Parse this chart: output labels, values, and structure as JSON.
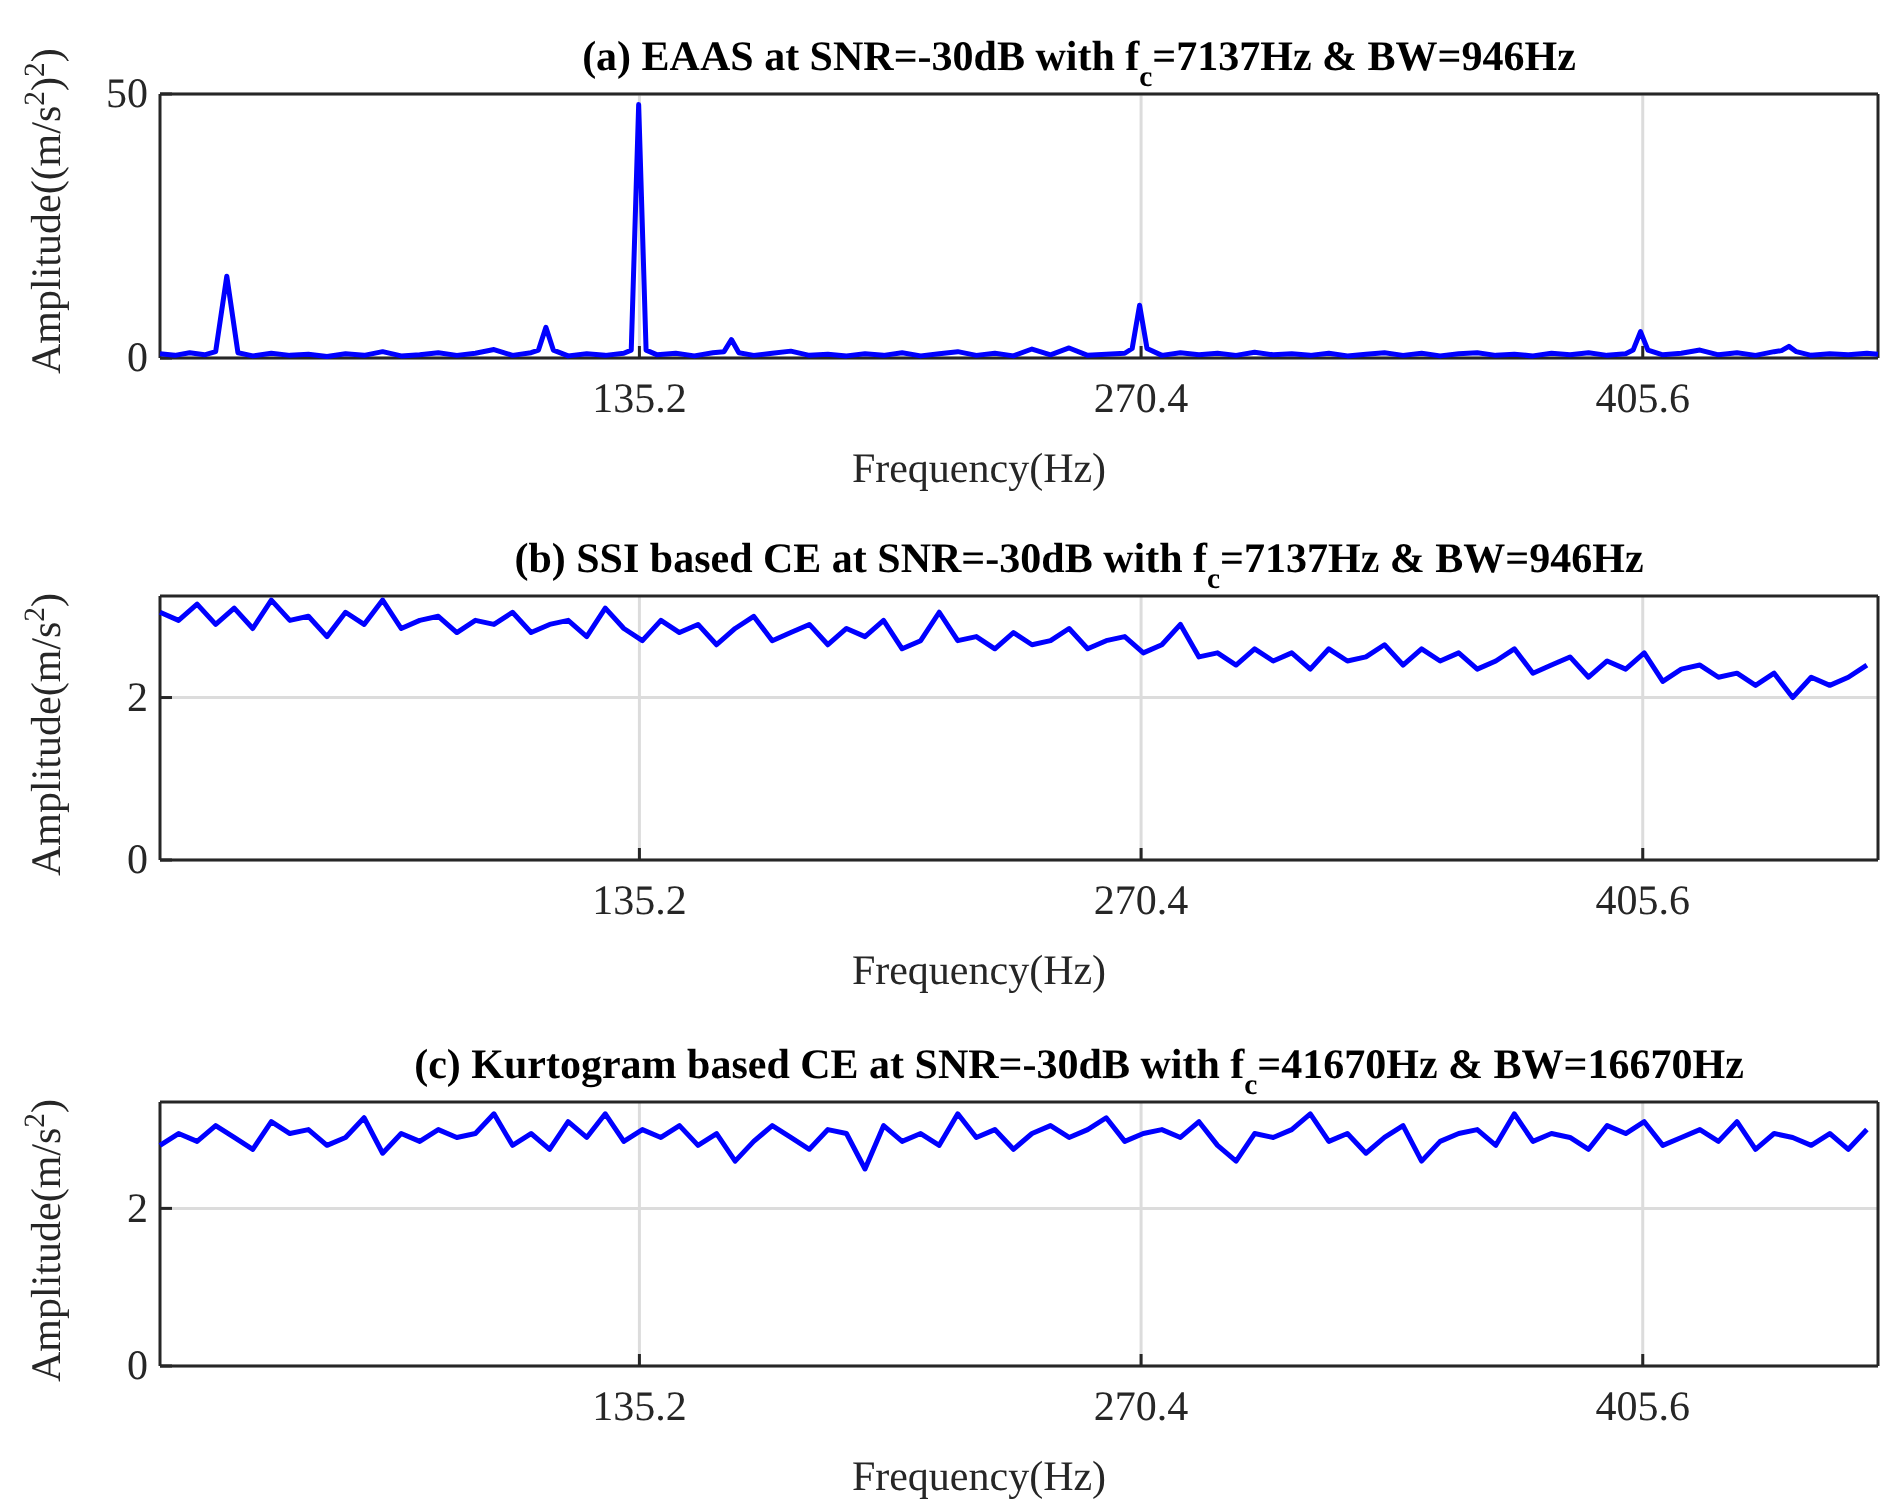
{
  "chart_data": [
    {
      "type": "line",
      "title": "(a) EAAS at SNR=-30dB with f$_{c}$=7137Hz & BW=946Hz",
      "xlabel": "Frequency(Hz)",
      "ylabel": "Amplitude((m/s$^{2}$)$^{2}$)",
      "xlim": [
        6,
        469
      ],
      "ylim": [
        0,
        50
      ],
      "xticks": [
        135.2,
        270.4,
        405.6
      ],
      "yticks": [
        0,
        50
      ],
      "grid": true,
      "line_style": "solid",
      "marker": "none",
      "series": [
        {
          "color": "#0000ff",
          "x": [
            6,
            10,
            14,
            18,
            21,
            24,
            27,
            31,
            36,
            41,
            46,
            51,
            56,
            61,
            66,
            71,
            76,
            81,
            86,
            91,
            96,
            101,
            106,
            108,
            110,
            112,
            116,
            121,
            126,
            131,
            133,
            135,
            137,
            140,
            145,
            150,
            155,
            158,
            160,
            162,
            166,
            171,
            176,
            181,
            186,
            191,
            196,
            201,
            206,
            211,
            216,
            221,
            226,
            231,
            236,
            241,
            246,
            251,
            256,
            261,
            266,
            268,
            270,
            272,
            276,
            281,
            286,
            291,
            296,
            301,
            306,
            311,
            316,
            321,
            326,
            331,
            336,
            341,
            346,
            351,
            356,
            361,
            366,
            371,
            376,
            381,
            386,
            391,
            396,
            401,
            403,
            405,
            407,
            411,
            416,
            421,
            426,
            431,
            436,
            441,
            443,
            445,
            447,
            451,
            456,
            461,
            466,
            469
          ],
          "values": [
            0.8,
            0.5,
            1.0,
            0.6,
            1.2,
            15.5,
            1.0,
            0.4,
            0.9,
            0.5,
            0.7,
            0.3,
            0.8,
            0.5,
            1.2,
            0.4,
            0.6,
            1.0,
            0.5,
            0.9,
            1.6,
            0.5,
            1.0,
            1.5,
            5.8,
            1.5,
            0.4,
            0.8,
            0.5,
            0.9,
            1.5,
            48,
            1.5,
            0.6,
            0.9,
            0.4,
            1.0,
            1.2,
            3.5,
            1.0,
            0.5,
            0.9,
            1.3,
            0.5,
            0.7,
            0.4,
            0.8,
            0.5,
            1.0,
            0.4,
            0.8,
            1.2,
            0.5,
            0.9,
            0.4,
            1.7,
            0.6,
            1.9,
            0.5,
            0.7,
            0.9,
            1.8,
            10,
            1.8,
            0.5,
            1.0,
            0.6,
            0.9,
            0.5,
            1.1,
            0.6,
            0.8,
            0.5,
            0.9,
            0.4,
            0.7,
            1.0,
            0.5,
            0.9,
            0.4,
            0.8,
            1.0,
            0.5,
            0.7,
            0.4,
            0.9,
            0.6,
            1.0,
            0.5,
            0.8,
            1.5,
            5.0,
            1.5,
            0.6,
            0.9,
            1.5,
            0.6,
            1.0,
            0.5,
            1.2,
            1.4,
            2.2,
            1.2,
            0.5,
            0.8,
            0.6,
            0.9,
            0.7
          ]
        }
      ]
    },
    {
      "type": "line",
      "title": "(b) SSI based CE at SNR=-30dB with f$_{c}$=7137Hz & BW=946Hz",
      "xlabel": "Frequency(Hz)",
      "ylabel": "Amplitude(m/s$^{2}$)",
      "xlim": [
        6,
        469
      ],
      "ylim": [
        0,
        3.25
      ],
      "xticks": [
        135.2,
        270.4,
        405.6
      ],
      "yticks": [
        0,
        2
      ],
      "grid": true,
      "line_style": "solid",
      "marker": "none",
      "x": [
        6,
        11,
        16,
        21,
        26,
        31,
        36,
        41,
        46,
        51,
        56,
        61,
        66,
        71,
        76,
        81,
        86,
        91,
        96,
        101,
        106,
        111,
        116,
        121,
        126,
        131,
        136,
        141,
        146,
        151,
        156,
        161,
        166,
        171,
        176,
        181,
        186,
        191,
        196,
        201,
        206,
        211,
        216,
        221,
        226,
        231,
        236,
        241,
        246,
        251,
        256,
        261,
        266,
        271,
        276,
        281,
        286,
        291,
        296,
        301,
        306,
        311,
        316,
        321,
        326,
        331,
        336,
        341,
        346,
        351,
        356,
        361,
        366,
        371,
        376,
        381,
        386,
        391,
        396,
        401,
        406,
        411,
        416,
        421,
        426,
        431,
        436,
        441,
        446,
        451,
        456,
        461,
        466
      ],
      "series": [
        {
          "color": "#0000ff",
          "values": [
            3.05,
            2.95,
            3.15,
            2.9,
            3.1,
            2.85,
            3.2,
            2.95,
            3.0,
            2.75,
            3.05,
            2.9,
            3.2,
            2.85,
            2.95,
            3.0,
            2.8,
            2.95,
            2.9,
            3.05,
            2.8,
            2.9,
            2.95,
            2.75,
            3.1,
            2.85,
            2.7,
            2.95,
            2.8,
            2.9,
            2.65,
            2.85,
            3.0,
            2.7,
            2.8,
            2.9,
            2.65,
            2.85,
            2.75,
            2.95,
            2.6,
            2.7,
            3.05,
            2.7,
            2.75,
            2.6,
            2.8,
            2.65,
            2.7,
            2.85,
            2.6,
            2.7,
            2.75,
            2.55,
            2.65,
            2.9,
            2.5,
            2.55,
            2.4,
            2.6,
            2.45,
            2.55,
            2.35,
            2.6,
            2.45,
            2.5,
            2.65,
            2.4,
            2.6,
            2.45,
            2.55,
            2.35,
            2.45,
            2.6,
            2.3,
            2.4,
            2.5,
            2.25,
            2.45,
            2.35,
            2.55,
            2.2,
            2.35,
            2.4,
            2.25,
            2.3,
            2.15,
            2.3,
            2.0,
            2.25,
            2.15,
            2.25,
            2.4
          ]
        }
      ]
    },
    {
      "type": "line",
      "title": "(c) Kurtogram based CE at SNR=-30dB with f$_{c}$=41670Hz & BW=16670Hz",
      "xlabel": "Frequency(Hz)",
      "ylabel": "Amplitude(m/s$^{2}$)",
      "xlim": [
        6,
        469
      ],
      "ylim": [
        0,
        3.35
      ],
      "xticks": [
        135.2,
        270.4,
        405.6
      ],
      "yticks": [
        0,
        2
      ],
      "grid": true,
      "line_style": "solid",
      "marker": "none",
      "x": [
        6,
        11,
        16,
        21,
        26,
        31,
        36,
        41,
        46,
        51,
        56,
        61,
        66,
        71,
        76,
        81,
        86,
        91,
        96,
        101,
        106,
        111,
        116,
        121,
        126,
        131,
        136,
        141,
        146,
        151,
        156,
        161,
        166,
        171,
        176,
        181,
        186,
        191,
        196,
        201,
        206,
        211,
        216,
        221,
        226,
        231,
        236,
        241,
        246,
        251,
        256,
        261,
        266,
        271,
        276,
        281,
        286,
        291,
        296,
        301,
        306,
        311,
        316,
        321,
        326,
        331,
        336,
        341,
        346,
        351,
        356,
        361,
        366,
        371,
        376,
        381,
        386,
        391,
        396,
        401,
        406,
        411,
        416,
        421,
        426,
        431,
        436,
        441,
        446,
        451,
        456,
        461,
        466
      ],
      "series": [
        {
          "color": "#0000ff",
          "values": [
            2.8,
            2.95,
            2.85,
            3.05,
            2.9,
            2.75,
            3.1,
            2.95,
            3.0,
            2.8,
            2.9,
            3.15,
            2.7,
            2.95,
            2.85,
            3.0,
            2.9,
            2.95,
            3.2,
            2.8,
            2.95,
            2.75,
            3.1,
            2.9,
            3.2,
            2.85,
            3.0,
            2.9,
            3.05,
            2.8,
            2.95,
            2.6,
            2.85,
            3.05,
            2.9,
            2.75,
            3.0,
            2.95,
            2.5,
            3.05,
            2.85,
            2.95,
            2.8,
            3.2,
            2.9,
            3.0,
            2.75,
            2.95,
            3.05,
            2.9,
            3.0,
            3.15,
            2.85,
            2.95,
            3.0,
            2.9,
            3.1,
            2.8,
            2.6,
            2.95,
            2.9,
            3.0,
            3.2,
            2.85,
            2.95,
            2.7,
            2.9,
            3.05,
            2.6,
            2.85,
            2.95,
            3.0,
            2.8,
            3.2,
            2.85,
            2.95,
            2.9,
            2.75,
            3.05,
            2.95,
            3.1,
            2.8,
            2.9,
            3.0,
            2.85,
            3.1,
            2.75,
            2.95,
            2.9,
            2.8,
            2.95,
            2.75,
            3.0
          ]
        }
      ]
    }
  ]
}
